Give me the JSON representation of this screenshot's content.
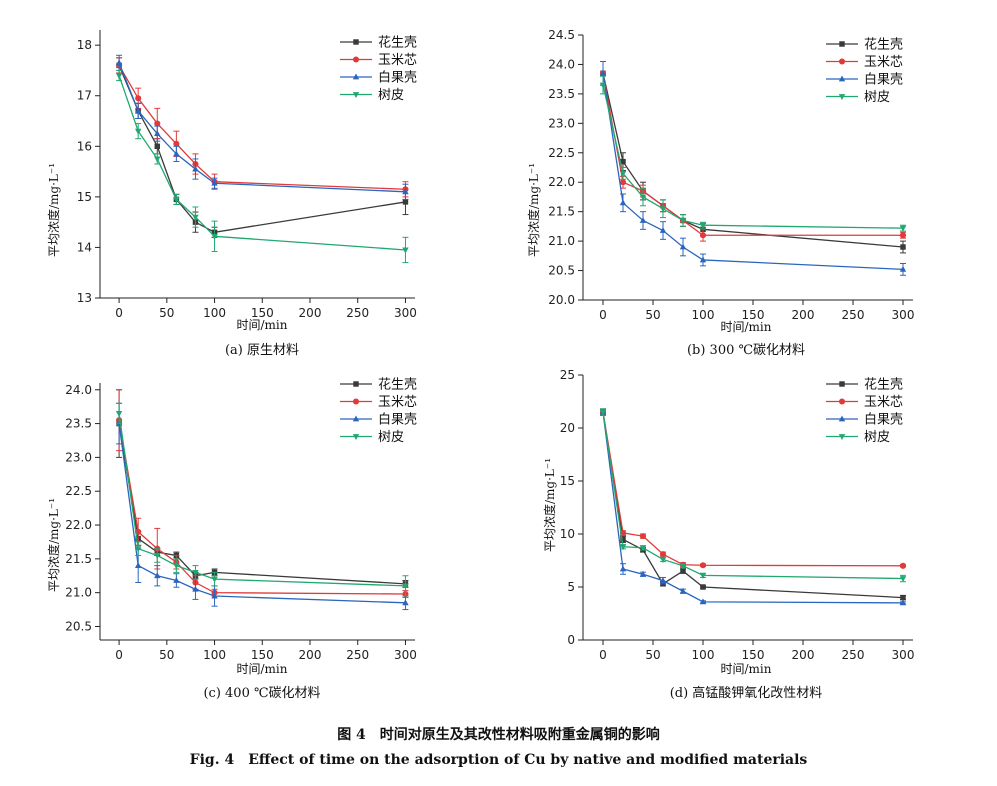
{
  "colors": {
    "peanut": "#3a3a3a",
    "corn": "#e03a3a",
    "ginkgo": "#2a66c0",
    "bark": "#20a870"
  },
  "figure_caption_cn": "图 4　时间对原生及其改性材料吸附重金属铜的影响",
  "figure_caption_en": "Fig. 4　Effect of time on the adsorption of Cu by native and modified materials",
  "chart_data": [
    {
      "type": "line",
      "caption": "(a) 原生材料",
      "xlabel": "时间/min",
      "ylabel": "平均浓度/mg·L⁻¹",
      "x": [
        0,
        20,
        40,
        60,
        80,
        100,
        300
      ],
      "xlim": [
        -20,
        310
      ],
      "xticks": [
        0,
        50,
        100,
        150,
        200,
        250,
        300
      ],
      "ylim": [
        13,
        18.3
      ],
      "yticks": [
        13,
        14,
        15,
        16,
        17,
        18
      ],
      "series": [
        {
          "name": "花生壳",
          "values": [
            17.6,
            16.7,
            16.0,
            14.95,
            14.5,
            14.3,
            14.9
          ],
          "err": [
            0.15,
            0.15,
            0.15,
            0.1,
            0.2,
            0.1,
            0.25
          ]
        },
        {
          "name": "玉米芯",
          "values": [
            17.6,
            16.95,
            16.45,
            16.05,
            15.65,
            15.3,
            15.15
          ],
          "err": [
            0.15,
            0.2,
            0.3,
            0.25,
            0.2,
            0.15,
            0.15
          ]
        },
        {
          "name": "白果壳",
          "values": [
            17.65,
            16.7,
            16.25,
            15.85,
            15.55,
            15.27,
            15.1
          ],
          "err": [
            0.15,
            0.15,
            0.15,
            0.15,
            0.2,
            0.1,
            0.15
          ]
        },
        {
          "name": "树皮",
          "values": [
            17.4,
            16.3,
            15.75,
            14.95,
            14.6,
            14.22,
            13.95
          ],
          "err": [
            0.1,
            0.15,
            0.1,
            0.1,
            0.2,
            0.3,
            0.25
          ]
        }
      ]
    },
    {
      "type": "line",
      "caption": "(b) 300 ℃碳化材料",
      "xlabel": "时间/min",
      "ylabel": "平均浓度/mg·L⁻¹",
      "x": [
        0,
        20,
        40,
        60,
        80,
        100,
        300
      ],
      "xlim": [
        -20,
        310
      ],
      "xticks": [
        0,
        50,
        100,
        150,
        200,
        250,
        300
      ],
      "ylim": [
        20.0,
        24.5
      ],
      "yticks": [
        20.0,
        20.5,
        21.0,
        21.5,
        22.0,
        22.5,
        23.0,
        23.5,
        24.0,
        24.5
      ],
      "series": [
        {
          "name": "花生壳",
          "values": [
            23.85,
            22.35,
            21.85,
            21.6,
            21.35,
            21.2,
            20.9
          ],
          "err": [
            0.2,
            0.15,
            0.15,
            0.1,
            0.1,
            0.1,
            0.1
          ]
        },
        {
          "name": "玉米芯",
          "values": [
            23.85,
            22.0,
            21.85,
            21.6,
            21.35,
            21.1,
            21.1
          ],
          "err": [
            0.2,
            0.1,
            0.1,
            0.1,
            0.1,
            0.1,
            0.05
          ]
        },
        {
          "name": "白果壳",
          "values": [
            23.85,
            21.65,
            21.35,
            21.18,
            20.9,
            20.68,
            20.52
          ],
          "err": [
            0.2,
            0.15,
            0.15,
            0.15,
            0.15,
            0.1,
            0.1
          ]
        },
        {
          "name": "树皮",
          "values": [
            23.65,
            22.15,
            21.75,
            21.55,
            21.35,
            21.27,
            21.22
          ],
          "err": [
            0.15,
            0.1,
            0.15,
            0.15,
            0.1,
            0.05,
            0.05
          ]
        }
      ]
    },
    {
      "type": "line",
      "caption": "(c) 400 ℃碳化材料",
      "xlabel": "时间/min",
      "ylabel": "平均浓度/mg·L⁻¹",
      "x": [
        0,
        20,
        40,
        60,
        80,
        100,
        300
      ],
      "xlim": [
        -20,
        310
      ],
      "xticks": [
        0,
        50,
        100,
        150,
        200,
        250,
        300
      ],
      "ylim": [
        20.3,
        24.1
      ],
      "yticks": [
        20.5,
        21.0,
        21.5,
        22.0,
        22.5,
        23.0,
        23.5,
        24.0
      ],
      "series": [
        {
          "name": "花生壳",
          "values": [
            23.5,
            21.8,
            21.6,
            21.55,
            21.25,
            21.3,
            21.13
          ],
          "err": [
            0.5,
            0.1,
            0.05,
            0.05,
            0.05,
            0.05,
            0.05
          ]
        },
        {
          "name": "玉米芯",
          "values": [
            23.55,
            21.9,
            21.65,
            21.45,
            21.15,
            21.0,
            20.98
          ],
          "err": [
            0.45,
            0.2,
            0.3,
            0.1,
            0.1,
            0.05,
            0.05
          ]
        },
        {
          "name": "白果壳",
          "values": [
            23.5,
            21.4,
            21.25,
            21.18,
            21.05,
            20.95,
            20.85
          ],
          "err": [
            0.3,
            0.25,
            0.15,
            0.1,
            0.15,
            0.15,
            0.1
          ]
        },
        {
          "name": "树皮",
          "values": [
            23.65,
            21.65,
            21.55,
            21.4,
            21.3,
            21.2,
            21.1
          ],
          "err": [
            0.15,
            0.1,
            0.1,
            0.1,
            0.1,
            0.1,
            0.15
          ]
        }
      ]
    },
    {
      "type": "line",
      "caption": "(d) 高锰酸钾氧化改性材料",
      "xlabel": "时间/min",
      "ylabel": "平均浓度/mg·L⁻¹",
      "x": [
        0,
        20,
        40,
        60,
        80,
        100,
        300
      ],
      "xlim": [
        -20,
        310
      ],
      "xticks": [
        0,
        50,
        100,
        150,
        200,
        250,
        300
      ],
      "ylim": [
        0,
        25
      ],
      "yticks": [
        0,
        5,
        10,
        15,
        20,
        25
      ],
      "series": [
        {
          "name": "花生壳",
          "values": [
            21.5,
            9.5,
            8.5,
            5.3,
            6.5,
            5.0,
            4.0
          ],
          "err": [
            0.3,
            0.3,
            0.2,
            0.2,
            0.2,
            0.1,
            0.2
          ]
        },
        {
          "name": "玉米芯",
          "values": [
            21.5,
            10.1,
            9.8,
            8.1,
            7.1,
            7.05,
            7.0
          ],
          "err": [
            0.3,
            0.2,
            0.2,
            0.2,
            0.2,
            0.1,
            0.1
          ]
        },
        {
          "name": "白果壳",
          "values": [
            21.5,
            6.7,
            6.2,
            5.6,
            4.6,
            3.6,
            3.5
          ],
          "err": [
            0.3,
            0.5,
            0.2,
            0.3,
            0.2,
            0.1,
            0.1
          ]
        },
        {
          "name": "树皮",
          "values": [
            21.5,
            8.8,
            8.7,
            7.6,
            7.0,
            6.1,
            5.8
          ],
          "err": [
            0.3,
            0.2,
            0.2,
            0.2,
            0.2,
            0.2,
            0.3
          ]
        }
      ]
    }
  ]
}
